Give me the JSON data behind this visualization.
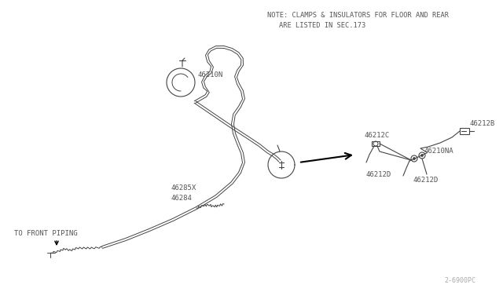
{
  "bg_color": "#ffffff",
  "line_color": "#444444",
  "text_color": "#555555",
  "note_line1": "NOTE: CLAMPS & INSULATORS FOR FLOOR AND REAR",
  "note_line2": "ARE LISTED IN SEC.173",
  "watermark": "2-6900PC",
  "fig_w": 6.4,
  "fig_h": 3.72,
  "dpi": 100
}
